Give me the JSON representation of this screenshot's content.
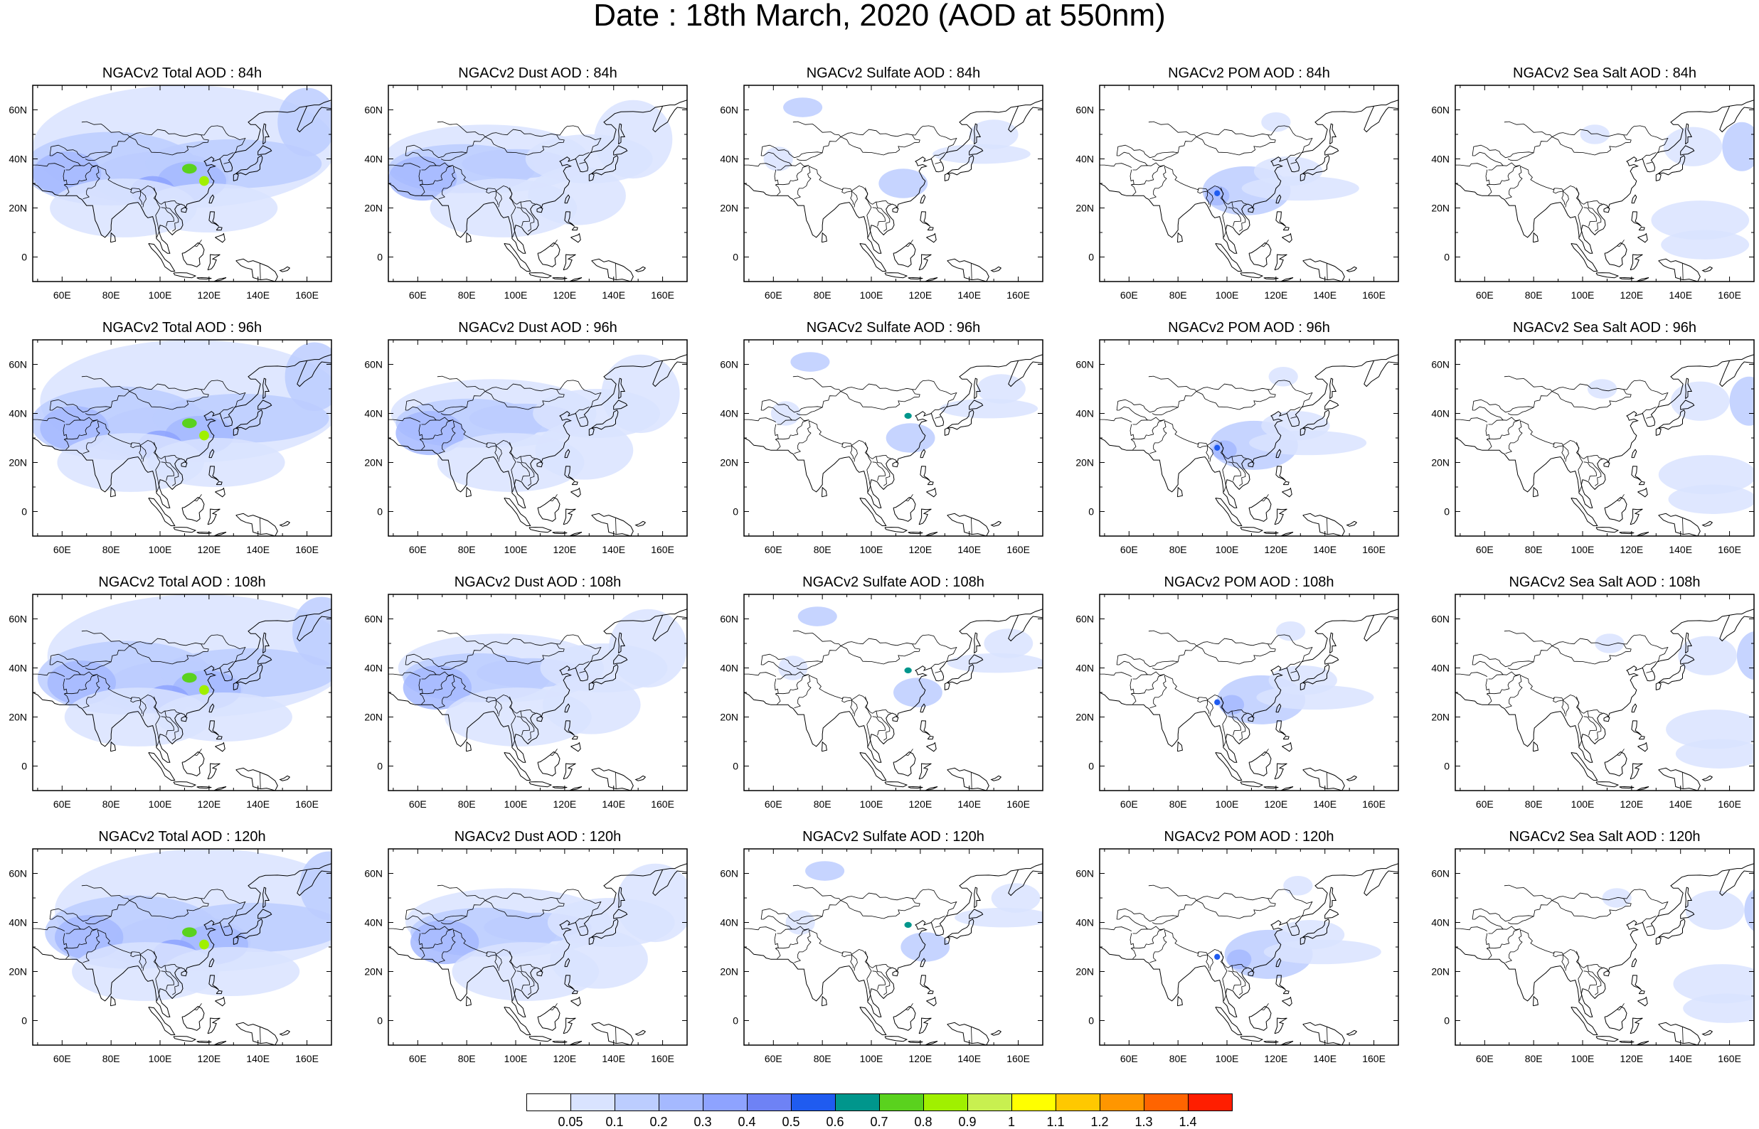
{
  "title": "Date : 18th March, 2020 (AOD at 550nm)",
  "lat_labels": [
    "60N",
    "40N",
    "20N",
    "0"
  ],
  "lon_labels": [
    "60E",
    "80E",
    "100E",
    "120E",
    "140E",
    "160E"
  ],
  "panels": [
    {
      "title": "NGACv2 Total AOD : 84h",
      "species": "total",
      "hour": "84h"
    },
    {
      "title": "NGACv2 Dust AOD : 84h",
      "species": "dust",
      "hour": "84h"
    },
    {
      "title": "NGACv2 Sulfate AOD : 84h",
      "species": "sulfate",
      "hour": "84h"
    },
    {
      "title": "NGACv2 POM AOD : 84h",
      "species": "pom",
      "hour": "84h"
    },
    {
      "title": "NGACv2 Sea Salt AOD : 84h",
      "species": "seasalt",
      "hour": "84h"
    },
    {
      "title": "NGACv2 Total AOD : 96h",
      "species": "total",
      "hour": "96h"
    },
    {
      "title": "NGACv2 Dust AOD : 96h",
      "species": "dust",
      "hour": "96h"
    },
    {
      "title": "NGACv2 Sulfate AOD : 96h",
      "species": "sulfate",
      "hour": "96h"
    },
    {
      "title": "NGACv2 POM AOD : 96h",
      "species": "pom",
      "hour": "96h"
    },
    {
      "title": "NGACv2 Sea Salt AOD : 96h",
      "species": "seasalt",
      "hour": "96h"
    },
    {
      "title": "NGACv2 Total AOD : 108h",
      "species": "total",
      "hour": "108h"
    },
    {
      "title": "NGACv2 Dust AOD : 108h",
      "species": "dust",
      "hour": "108h"
    },
    {
      "title": "NGACv2 Sulfate AOD : 108h",
      "species": "sulfate",
      "hour": "108h"
    },
    {
      "title": "NGACv2 POM AOD : 108h",
      "species": "pom",
      "hour": "108h"
    },
    {
      "title": "NGACv2 Sea Salt AOD : 108h",
      "species": "seasalt",
      "hour": "108h"
    },
    {
      "title": "NGACv2 Total AOD : 120h",
      "species": "total",
      "hour": "120h"
    },
    {
      "title": "NGACv2 Dust AOD : 120h",
      "species": "dust",
      "hour": "120h"
    },
    {
      "title": "NGACv2 Sulfate AOD : 120h",
      "species": "sulfate",
      "hour": "120h"
    },
    {
      "title": "NGACv2 POM AOD : 120h",
      "species": "pom",
      "hour": "120h"
    },
    {
      "title": "NGACv2 Sea Salt  AOD : 120h",
      "species": "seasalt",
      "hour": "120h"
    }
  ],
  "colorbar": {
    "labels": [
      "0.05",
      "0.1",
      "0.2",
      "0.3",
      "0.4",
      "0.5",
      "0.6",
      "0.7",
      "0.8",
      "0.9",
      "1",
      "1.1",
      "1.2",
      "1.3",
      "1.4"
    ],
    "colors": [
      "#ffffff",
      "#d9e3ff",
      "#bccdff",
      "#a5b9ff",
      "#8ea3ff",
      "#6e82f5",
      "#1f5bf0",
      "#00968c",
      "#5ad21e",
      "#a0f000",
      "#c8f050",
      "#ffff00",
      "#ffc800",
      "#ff9600",
      "#ff6400",
      "#ff1e00"
    ]
  }
}
